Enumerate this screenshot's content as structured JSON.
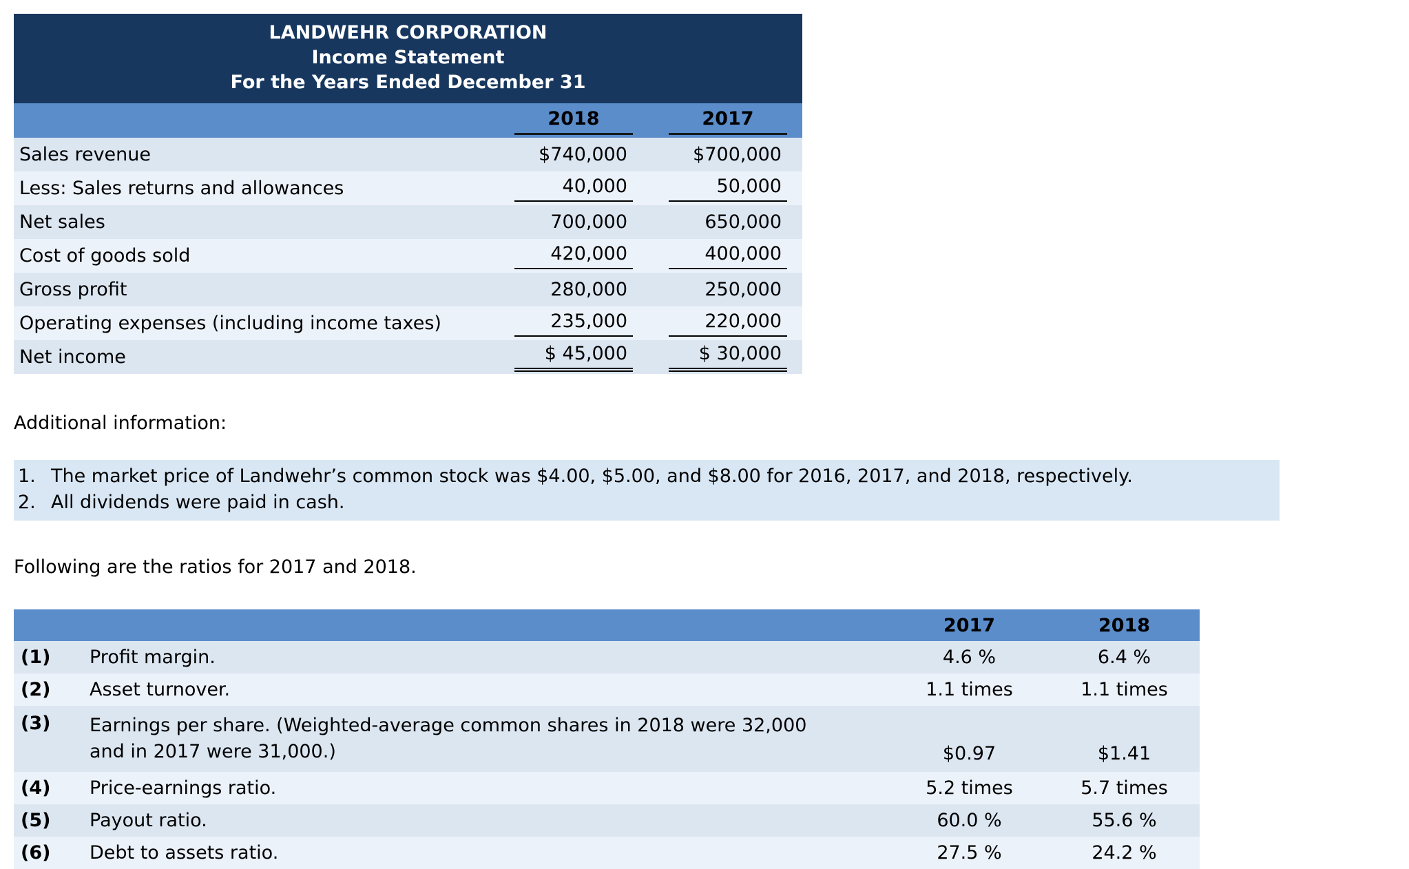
{
  "income_statement": {
    "title_lines": [
      "LANDWEHR CORPORATION",
      "Income Statement",
      "For the Years Ended December 31"
    ],
    "col_headers": [
      "2018",
      "2017"
    ],
    "rows": [
      {
        "label": "Sales revenue",
        "y2018": "$740,000",
        "y2017": "$700,000"
      },
      {
        "label": "Less: Sales returns and allowances",
        "y2018": "40,000",
        "y2017": "50,000"
      },
      {
        "label": "Net sales",
        "y2018": "700,000",
        "y2017": "650,000"
      },
      {
        "label": "Cost of goods sold",
        "y2018": "420,000",
        "y2017": "400,000"
      },
      {
        "label": "Gross profit",
        "y2018": "280,000",
        "y2017": "250,000"
      },
      {
        "label": "Operating expenses (including income taxes)",
        "y2018": "235,000",
        "y2017": "220,000"
      },
      {
        "label": "Net income",
        "y2018": "$ 45,000",
        "y2017": "$ 30,000"
      }
    ]
  },
  "additional_info": {
    "heading": "Additional information:",
    "items": [
      {
        "num": "1.",
        "text": "The market price of Landwehr’s common stock was $4.00, $5.00, and $8.00 for 2016, 2017, and 2018, respectively."
      },
      {
        "num": "2.",
        "text": "All dividends were paid in cash."
      }
    ]
  },
  "ratios_intro": "Following are the ratios for 2017 and 2018.",
  "ratios_table": {
    "col_headers": [
      "2017",
      "2018"
    ],
    "rows": [
      {
        "num": "(1)",
        "label": "Profit margin.",
        "v2017": "4.6 %",
        "v2018": "6.4 %"
      },
      {
        "num": "(2)",
        "label": "Asset turnover.",
        "v2017": "1.1 times",
        "v2018": "1.1 times"
      },
      {
        "num": "(3)",
        "label_line1": "Earnings per share. (Weighted-average common shares in 2018 were 32,000",
        "label_line2": "and in 2017 were 31,000.)",
        "v2017": "$0.97",
        "v2018": "$1.41"
      },
      {
        "num": "(4)",
        "label": "Price-earnings ratio.",
        "v2017": "5.2 times",
        "v2018": "5.7 times"
      },
      {
        "num": "(5)",
        "label": "Payout ratio.",
        "v2017": "60.0 %",
        "v2018": "55.6 %"
      },
      {
        "num": "(6)",
        "label": "Debt to assets ratio.",
        "v2017": "27.5 %",
        "v2018": "24.2 %"
      }
    ]
  },
  "colors": {
    "header_navy": "#17375E",
    "column_header_blue": "#5B8DCB",
    "row_dark": "#DCE6F1",
    "row_light": "#ECF2F9",
    "highlight": "#D9E7F5"
  }
}
